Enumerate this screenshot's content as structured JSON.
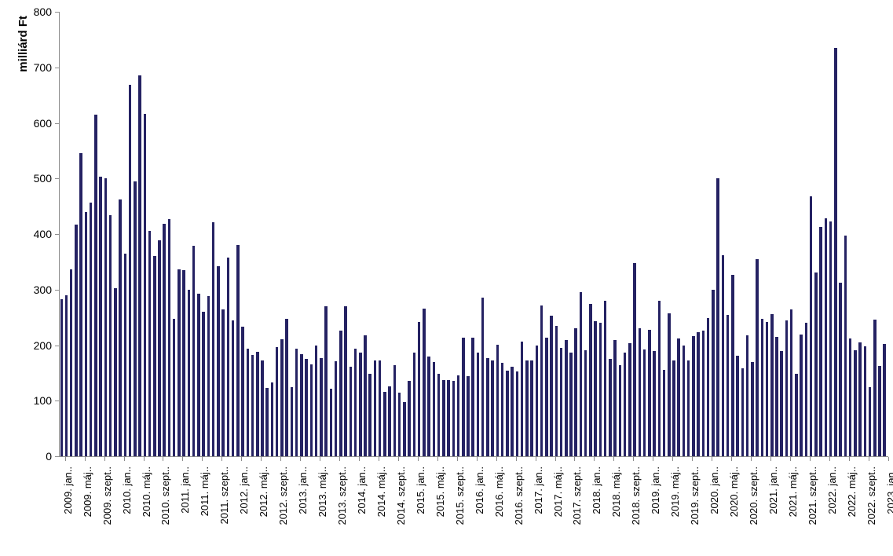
{
  "chart_data": {
    "type": "bar",
    "title": "",
    "xlabel": "",
    "ylabel": "milliárd Ft",
    "ylim": [
      0,
      800
    ],
    "ytick_step": 100,
    "ytick_labels": [
      "0",
      "100",
      "200",
      "300",
      "400",
      "500",
      "600",
      "700",
      "800"
    ],
    "grid": false,
    "legend": false,
    "bar_color": "#252263",
    "axis_color": "#8c8c8c",
    "x_range": "2009. jan. - 2023. jan. (monthly)",
    "x_tick_every_n_bars": 4,
    "x_tick_labels": [
      "2009. jan..",
      "2009. máj..",
      "2009. szept..",
      "2010. jan..",
      "2010. máj..",
      "2010. szept..",
      "2011. jan..",
      "2011. máj..",
      "2011. szept..",
      "2012. jan..",
      "2012. máj..",
      "2012. szept..",
      "2013. jan..",
      "2013. máj..",
      "2013. szept..",
      "2014. jan..",
      "2014. máj..",
      "2014. szept..",
      "2015. jan..",
      "2015. máj..",
      "2015. szept..",
      "2016. jan..",
      "2016. máj..",
      "2016. szept..",
      "2017. jan..",
      "2017. máj..",
      "2017. szept..",
      "2018. jan..",
      "2018. máj..",
      "2018. szept..",
      "2019. jan..",
      "2019. máj..",
      "2019. szept..",
      "2020. jan..",
      "2020. máj..",
      "2020. szept..",
      "2021. jan..",
      "2021. máj..",
      "2021. szept..",
      "2022. jan..",
      "2022. máj..",
      "2022. szept..",
      "2023. jan.."
    ],
    "series": [
      {
        "name": "milliárd Ft",
        "values": [
          282,
          290,
          336,
          417,
          545,
          440,
          456,
          615,
          503,
          500,
          434,
          302,
          462,
          365,
          668,
          495,
          686,
          616,
          406,
          361,
          388,
          418,
          427,
          248,
          336,
          335,
          299,
          379,
          293,
          260,
          288,
          421,
          342,
          265,
          358,
          245,
          380,
          233,
          194,
          182,
          188,
          172,
          123,
          133,
          196,
          210,
          248,
          125,
          194,
          184,
          175,
          165,
          199,
          177,
          270,
          121,
          171,
          226,
          270,
          161,
          194,
          187,
          217,
          148,
          172,
          172,
          116,
          126,
          164,
          114,
          97,
          135,
          186,
          241,
          266,
          179,
          169,
          149,
          137,
          137,
          136,
          145,
          214,
          144,
          214,
          187,
          285,
          177,
          173,
          200,
          168,
          154,
          161,
          152,
          206,
          172,
          172,
          199,
          271,
          213,
          253,
          235,
          195,
          209,
          186,
          231,
          295,
          191,
          274,
          243,
          240,
          280,
          175,
          209,
          164,
          186,
          204,
          347,
          231,
          192,
          227,
          190,
          280,
          155,
          257,
          173,
          212,
          199,
          172,
          216,
          224,
          226,
          249,
          299,
          500,
          362,
          254,
          327,
          181,
          159,
          217,
          169,
          355,
          247,
          242,
          256,
          215,
          190,
          245,
          264,
          148,
          219,
          240,
          468,
          331,
          413,
          428,
          423,
          735,
          312,
          397,
          212,
          191,
          205,
          198,
          125,
          246,
          162,
          202
        ]
      }
    ]
  }
}
